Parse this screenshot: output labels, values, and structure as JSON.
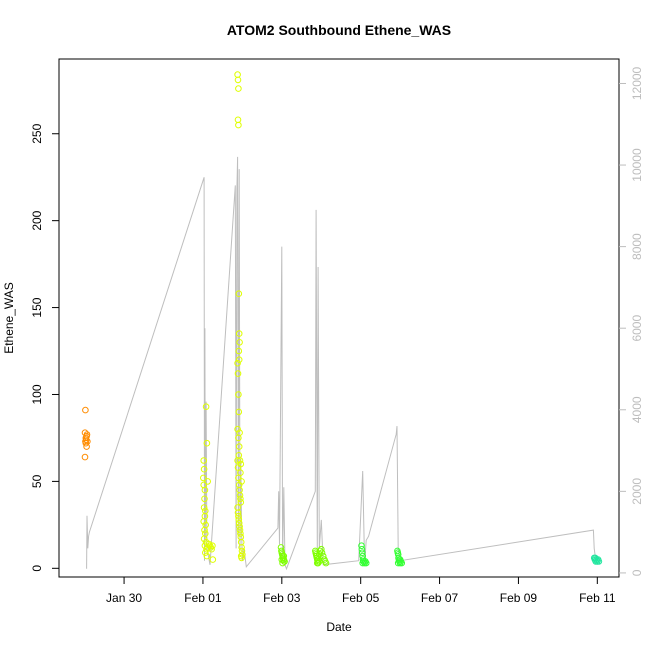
{
  "chart_data": {
    "type": "scatter",
    "title": "ATOM2 Southbound Ethene_WAS",
    "xlabel": "Date",
    "ylabel": "Ethene_WAS",
    "x_range_days": [
      -1.65,
      12.55
    ],
    "ylim": [
      -5,
      293
    ],
    "y2lim": [
      -100,
      12600
    ],
    "x_ticks": [
      {
        "label": "Jan 30",
        "day": 0
      },
      {
        "label": "Feb 01",
        "day": 2
      },
      {
        "label": "Feb 03",
        "day": 4
      },
      {
        "label": "Feb 05",
        "day": 6
      },
      {
        "label": "Feb 07",
        "day": 8
      },
      {
        "label": "Feb 09",
        "day": 10
      },
      {
        "label": "Feb 11",
        "day": 12
      }
    ],
    "y_ticks": [
      "0",
      "50",
      "100",
      "150",
      "200",
      "250"
    ],
    "y2_ticks": [
      "0",
      "2000",
      "4000",
      "6000",
      "8000",
      "10000",
      "12000"
    ],
    "grid": false,
    "legend": "none",
    "secondary_series": {
      "color": "#bebebe",
      "points": [
        [
          -0.95,
          100
        ],
        [
          -0.94,
          1400
        ],
        [
          -0.92,
          600
        ],
        [
          -0.9,
          900
        ],
        [
          -0.88,
          1000
        ],
        [
          2.03,
          9700
        ],
        [
          2.04,
          300
        ],
        [
          2.05,
          6000
        ],
        [
          2.06,
          800
        ],
        [
          2.08,
          4200
        ],
        [
          2.1,
          600
        ],
        [
          2.14,
          400
        ],
        [
          2.18,
          200
        ],
        [
          2.82,
          9500
        ],
        [
          2.84,
          600
        ],
        [
          2.86,
          9400
        ],
        [
          2.88,
          10200
        ],
        [
          2.9,
          900
        ],
        [
          2.92,
          9900
        ],
        [
          2.94,
          600
        ],
        [
          2.96,
          2800
        ],
        [
          2.98,
          1000
        ],
        [
          3.0,
          300
        ],
        [
          3.04,
          600
        ],
        [
          3.1,
          150
        ],
        [
          3.9,
          1100
        ],
        [
          3.92,
          2000
        ],
        [
          3.94,
          700
        ],
        [
          4.0,
          8000
        ],
        [
          4.02,
          300
        ],
        [
          4.05,
          2100
        ],
        [
          4.08,
          200
        ],
        [
          4.12,
          100
        ],
        [
          4.85,
          2000
        ],
        [
          4.87,
          8900
        ],
        [
          4.9,
          500
        ],
        [
          4.92,
          7500
        ],
        [
          4.95,
          600
        ],
        [
          5.0,
          1300
        ],
        [
          5.05,
          200
        ],
        [
          5.95,
          300
        ],
        [
          6.05,
          2500
        ],
        [
          6.1,
          200
        ],
        [
          6.14,
          800
        ],
        [
          6.2,
          900
        ],
        [
          6.9,
          3400
        ],
        [
          6.92,
          3600
        ],
        [
          6.95,
          600
        ],
        [
          7.0,
          300
        ],
        [
          11.9,
          1050
        ],
        [
          11.92,
          600
        ],
        [
          11.95,
          400
        ],
        [
          12.0,
          200
        ]
      ]
    },
    "series": [
      {
        "color": "#ff8c00",
        "points": [
          [
            -0.98,
            91
          ],
          [
            -0.99,
            78
          ],
          [
            -0.97,
            75
          ],
          [
            -0.98,
            73
          ],
          [
            -0.96,
            74
          ],
          [
            -0.97,
            72
          ],
          [
            -0.95,
            70
          ],
          [
            -0.99,
            64
          ],
          [
            -0.94,
            77
          ],
          [
            -0.93,
            73
          ],
          [
            -0.95,
            76
          ]
        ]
      },
      {
        "color": "#dfff00",
        "points": [
          [
            2.02,
            62
          ],
          [
            2.03,
            57
          ],
          [
            2.01,
            52
          ],
          [
            2.02,
            48
          ],
          [
            2.05,
            45
          ],
          [
            2.04,
            40
          ],
          [
            2.03,
            35
          ],
          [
            2.06,
            33
          ],
          [
            2.05,
            30
          ],
          [
            2.02,
            27
          ],
          [
            2.07,
            25
          ],
          [
            2.04,
            22
          ],
          [
            2.06,
            20
          ],
          [
            2.03,
            17
          ],
          [
            2.08,
            15
          ],
          [
            2.05,
            13
          ],
          [
            2.09,
            11
          ],
          [
            2.06,
            9
          ],
          [
            2.1,
            7
          ],
          [
            2.12,
            12
          ],
          [
            2.15,
            14
          ],
          [
            2.18,
            13
          ],
          [
            2.2,
            12
          ],
          [
            2.22,
            11
          ],
          [
            2.24,
            13
          ],
          [
            2.25,
            5
          ],
          [
            2.08,
            93
          ],
          [
            2.1,
            72
          ],
          [
            2.12,
            50
          ],
          [
            2.88,
            284
          ],
          [
            2.89,
            281
          ],
          [
            2.9,
            276
          ],
          [
            2.89,
            258
          ],
          [
            2.9,
            255
          ],
          [
            2.91,
            158
          ],
          [
            2.92,
            135
          ],
          [
            2.93,
            130
          ],
          [
            2.91,
            125
          ],
          [
            2.92,
            120
          ],
          [
            2.88,
            118
          ],
          [
            2.89,
            112
          ],
          [
            2.9,
            100
          ],
          [
            2.91,
            90
          ],
          [
            2.88,
            80
          ],
          [
            2.93,
            78
          ],
          [
            2.9,
            75
          ],
          [
            2.92,
            70
          ],
          [
            2.91,
            65
          ],
          [
            2.94,
            62
          ],
          [
            2.88,
            62
          ],
          [
            2.89,
            58
          ],
          [
            2.95,
            55
          ],
          [
            2.9,
            52
          ],
          [
            2.92,
            48
          ],
          [
            2.93,
            45
          ],
          [
            2.94,
            42
          ],
          [
            2.95,
            40
          ],
          [
            2.96,
            38
          ],
          [
            2.88,
            35
          ],
          [
            2.89,
            32
          ],
          [
            2.9,
            30
          ],
          [
            2.91,
            28
          ],
          [
            2.92,
            26
          ],
          [
            2.93,
            24
          ],
          [
            2.94,
            22
          ],
          [
            2.95,
            20
          ],
          [
            2.96,
            18
          ],
          [
            2.97,
            15
          ],
          [
            2.98,
            12
          ],
          [
            2.99,
            10
          ],
          [
            3.0,
            8
          ],
          [
            2.97,
            7
          ],
          [
            2.98,
            6
          ],
          [
            2.96,
            60
          ],
          [
            2.98,
            50
          ]
        ]
      },
      {
        "color": "#7fff00",
        "points": [
          [
            3.98,
            12
          ],
          [
            3.99,
            10
          ],
          [
            4.0,
            9
          ],
          [
            4.01,
            8
          ],
          [
            4.02,
            7
          ],
          [
            4.03,
            6
          ],
          [
            4.04,
            5
          ],
          [
            4.05,
            5
          ],
          [
            4.06,
            4
          ],
          [
            4.07,
            4
          ],
          [
            4.02,
            3
          ],
          [
            4.0,
            5
          ],
          [
            4.05,
            7
          ],
          [
            4.85,
            10
          ],
          [
            4.86,
            9
          ],
          [
            4.87,
            8
          ],
          [
            4.88,
            7
          ],
          [
            4.89,
            6
          ],
          [
            4.9,
            5
          ],
          [
            4.91,
            4
          ],
          [
            4.92,
            3
          ],
          [
            4.93,
            5
          ],
          [
            4.95,
            8
          ],
          [
            4.97,
            10
          ],
          [
            5.0,
            11
          ],
          [
            5.02,
            9
          ],
          [
            5.05,
            7
          ],
          [
            5.08,
            5
          ],
          [
            5.1,
            4
          ],
          [
            5.12,
            3
          ],
          [
            4.9,
            3
          ],
          [
            4.95,
            4
          ]
        ]
      },
      {
        "color": "#32ff32",
        "points": [
          [
            6.02,
            13
          ],
          [
            6.03,
            11
          ],
          [
            6.04,
            9
          ],
          [
            6.05,
            7
          ],
          [
            6.06,
            5
          ],
          [
            6.07,
            4
          ],
          [
            6.08,
            4
          ],
          [
            6.1,
            3
          ],
          [
            6.12,
            4
          ],
          [
            6.14,
            3
          ],
          [
            6.05,
            3
          ],
          [
            6.93,
            10
          ],
          [
            6.94,
            9
          ],
          [
            6.95,
            8
          ],
          [
            6.96,
            6
          ],
          [
            6.97,
            5
          ],
          [
            6.98,
            4
          ],
          [
            7.0,
            3
          ],
          [
            7.02,
            4
          ],
          [
            7.04,
            3
          ],
          [
            6.95,
            3
          ],
          [
            7.0,
            5
          ]
        ]
      },
      {
        "color": "#1fe69e",
        "points": [
          [
            11.92,
            6
          ],
          [
            11.94,
            5
          ],
          [
            11.96,
            4
          ],
          [
            11.98,
            5
          ],
          [
            12.0,
            4
          ],
          [
            12.02,
            5
          ],
          [
            12.04,
            4
          ],
          [
            11.95,
            6
          ]
        ]
      }
    ]
  }
}
